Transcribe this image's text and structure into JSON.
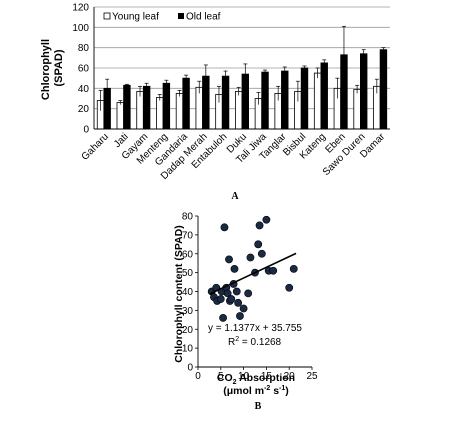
{
  "chart_data": [
    {
      "type": "bar",
      "panel_label": "A",
      "ylabel": "Chlorophyll (SPAD)",
      "ylabel_lines": [
        "Chlorophyll",
        "(SPAD)"
      ],
      "ylim": [
        0,
        120
      ],
      "yticks": [
        "0",
        "20",
        "40",
        "60",
        "80",
        "100",
        "120"
      ],
      "grid": true,
      "legend_position": "top-left",
      "categories": [
        "Gaharu",
        "Jati",
        "Gayam",
        "Menteng",
        "Gandaria",
        "Dadap Merah",
        "Entabuloh",
        "Duku",
        "Tali Jiwa",
        "Tanglar",
        "Bisbul",
        "Kateng",
        "Eben",
        "Sawo Duren",
        "Damar"
      ],
      "series": [
        {
          "name": "Young leaf",
          "color": "#ffffff",
          "values": [
            28,
            26,
            37,
            31,
            35,
            41,
            34,
            37,
            30,
            35,
            37,
            55,
            40,
            39,
            42
          ],
          "errors": [
            10,
            2,
            5,
            3,
            3,
            6,
            8,
            4,
            6,
            7,
            10,
            5,
            10,
            4,
            7
          ]
        },
        {
          "name": "Old leaf",
          "color": "#000000",
          "values": [
            40,
            43,
            42,
            45,
            50,
            52,
            52,
            54,
            56,
            57,
            60,
            65,
            73,
            74,
            78
          ],
          "errors": [
            9,
            1,
            3,
            3,
            3,
            11,
            5,
            10,
            2,
            4,
            2,
            3,
            28,
            4,
            2
          ]
        }
      ]
    },
    {
      "type": "scatter",
      "panel_label": "B",
      "ylabel": "Chlorophyll content (SPAD)",
      "xlabel_parts": [
        "CO",
        "2",
        " Absorption"
      ],
      "xunit_parts": [
        "(μmol m",
        "-2",
        " s",
        "-1",
        ")"
      ],
      "xlim": [
        0,
        25
      ],
      "ylim": [
        0,
        80
      ],
      "xticks": [
        "0",
        "5",
        "10",
        "15",
        "20",
        "25"
      ],
      "yticks": [
        "0",
        "10",
        "20",
        "30",
        "40",
        "50",
        "60",
        "70",
        "80"
      ],
      "marker_color": "#1b2a44",
      "equation": "y = 1.1377x + 35.755",
      "r2_parts": [
        "R",
        "2",
        " = 0.1268"
      ],
      "trendline": {
        "slope": 1.1377,
        "intercept": 35.755,
        "x_range": [
          2.6,
          21.5
        ]
      },
      "points": [
        {
          "x": 3.0,
          "y": 40
        },
        {
          "x": 3.5,
          "y": 37
        },
        {
          "x": 4.0,
          "y": 42
        },
        {
          "x": 4.2,
          "y": 35
        },
        {
          "x": 5.0,
          "y": 36
        },
        {
          "x": 5.2,
          "y": 40
        },
        {
          "x": 5.5,
          "y": 26
        },
        {
          "x": 5.8,
          "y": 74
        },
        {
          "x": 6.2,
          "y": 42
        },
        {
          "x": 6.5,
          "y": 39
        },
        {
          "x": 6.8,
          "y": 57
        },
        {
          "x": 7.0,
          "y": 35
        },
        {
          "x": 7.3,
          "y": 36
        },
        {
          "x": 7.8,
          "y": 44
        },
        {
          "x": 8.0,
          "y": 52
        },
        {
          "x": 8.5,
          "y": 40
        },
        {
          "x": 8.8,
          "y": 34
        },
        {
          "x": 9.2,
          "y": 27
        },
        {
          "x": 10.0,
          "y": 31
        },
        {
          "x": 11.0,
          "y": 39
        },
        {
          "x": 11.5,
          "y": 58
        },
        {
          "x": 12.5,
          "y": 50
        },
        {
          "x": 13.2,
          "y": 65
        },
        {
          "x": 13.5,
          "y": 75
        },
        {
          "x": 14.0,
          "y": 60
        },
        {
          "x": 15.0,
          "y": 78
        },
        {
          "x": 15.5,
          "y": 51
        },
        {
          "x": 16.5,
          "y": 51
        },
        {
          "x": 20.0,
          "y": 42
        },
        {
          "x": 21.0,
          "y": 52
        }
      ]
    }
  ]
}
